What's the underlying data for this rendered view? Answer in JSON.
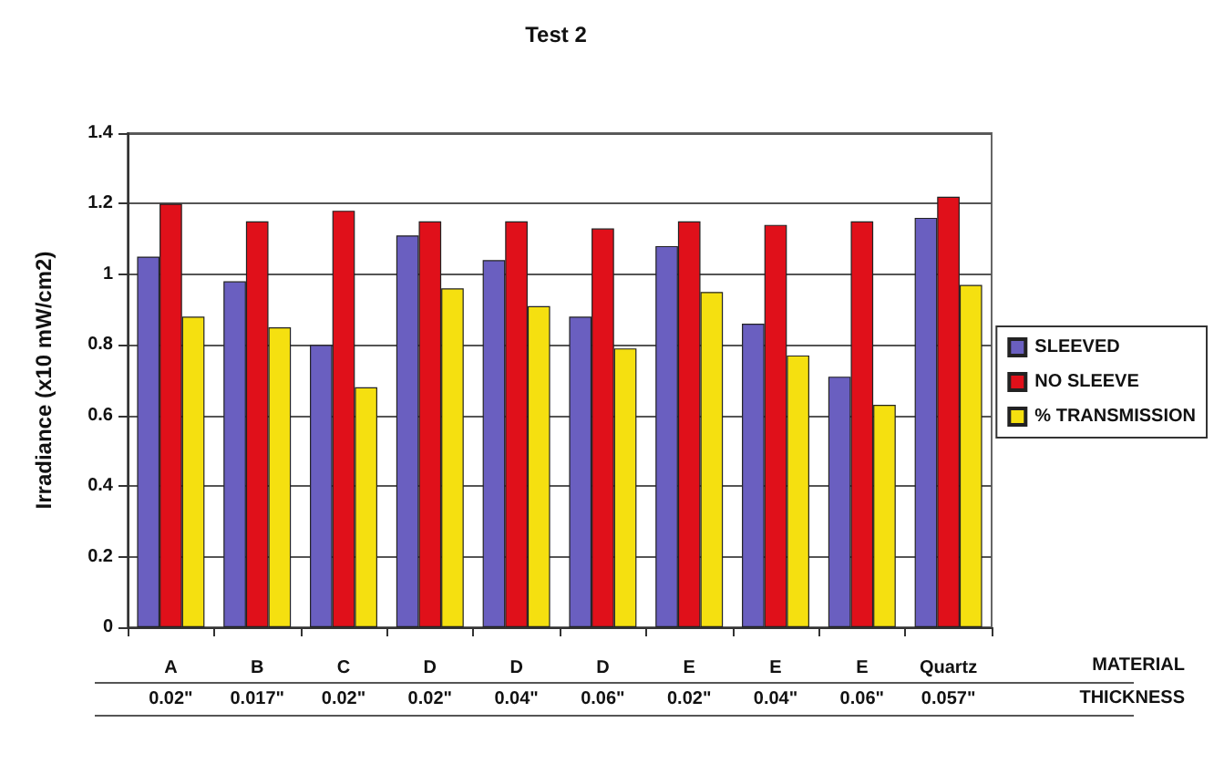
{
  "chart_data": {
    "type": "bar",
    "title": "Test 2",
    "ylabel": "Irradiance (x10 mW/cm2)",
    "categories": [
      "A\n0.02\"",
      "B\n0.017\"",
      "C\n0.02\"",
      "D\n0.02\"",
      "D\n0.04\"",
      "D\n0.06\"",
      "E\n0.02\"",
      "E\n0.04\"",
      "E\n0.06\"",
      "Quartz\n0.057\""
    ],
    "series": [
      {
        "name": "SLEEVED",
        "color": "#6a5fc0",
        "values": [
          1.05,
          0.98,
          0.8,
          1.11,
          1.04,
          0.88,
          1.08,
          0.86,
          0.71,
          1.16
        ]
      },
      {
        "name": "NO SLEEVE",
        "color": "#e0101a",
        "values": [
          1.2,
          1.15,
          1.18,
          1.15,
          1.15,
          1.13,
          1.15,
          1.14,
          1.15,
          1.22
        ]
      },
      {
        "name": "% TRANSMISSION",
        "color": "#f5e010",
        "values": [
          0.88,
          0.85,
          0.68,
          0.96,
          0.91,
          0.79,
          0.95,
          0.77,
          0.63,
          0.97
        ]
      }
    ],
    "annotations": [
      "MATERIAL",
      "THICKNESS"
    ],
    "ylim": [
      0,
      1.4
    ],
    "yticks": [
      0,
      0.2,
      0.4,
      0.6,
      0.8,
      1,
      1.2,
      1.4
    ],
    "grid": "y",
    "legend": "right"
  }
}
